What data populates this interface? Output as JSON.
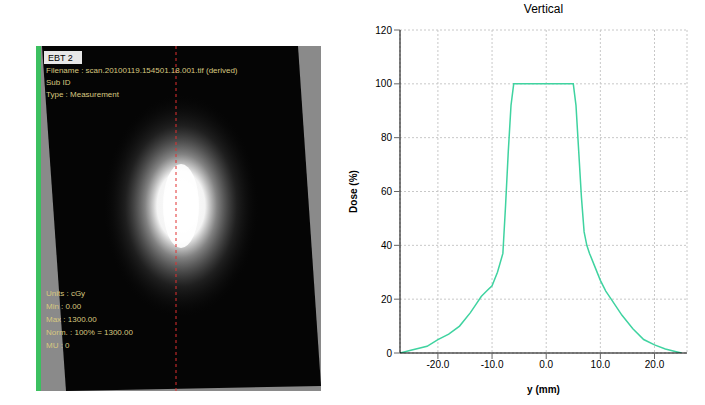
{
  "chart_data": {
    "type": "line",
    "title": "Vertical",
    "x_label": "y (mm)",
    "y_label": "Dose (%)",
    "x": [
      -27,
      -25,
      -22,
      -20,
      -18,
      -16,
      -14,
      -13,
      -12,
      -11,
      -10,
      -9,
      -8,
      -7.5,
      -7,
      -6.5,
      -6,
      0,
      5,
      5.5,
      6,
      6.5,
      7,
      7.5,
      8,
      9,
      10,
      11,
      12,
      14,
      16,
      18,
      20,
      22,
      24,
      25
    ],
    "values": [
      0,
      1,
      2.5,
      5,
      7,
      10,
      15,
      18,
      21,
      23,
      25,
      30,
      37,
      55,
      75,
      92,
      100,
      100,
      100,
      92,
      75,
      58,
      45,
      40,
      37,
      32,
      27,
      23,
      20,
      14,
      9,
      5,
      3,
      1.5,
      0.5,
      0
    ],
    "color": "#3fd3a0",
    "xlim": [
      -27,
      26
    ],
    "xticks": [
      {
        "value": -20,
        "label": "-20.0"
      },
      {
        "value": -10,
        "label": "-10.0"
      },
      {
        "value": 0,
        "label": "0.0"
      },
      {
        "value": 10,
        "label": "10.0"
      },
      {
        "value": 20,
        "label": "20.0"
      }
    ],
    "ylim": [
      0,
      120
    ],
    "yticks": [
      0,
      20,
      40,
      60,
      80,
      100,
      120
    ],
    "grid": true
  },
  "image_panel": {
    "header_lines": [
      "EBT 2",
      "Filename : scan.20100119.154501.18.001.tif (derived)",
      "Sub ID",
      "Type : Measurement"
    ],
    "footer_lines": [
      "Units : cGy",
      "Min : 0.00",
      "Max : 1300.00",
      "Norm. : 100% = 1300.00",
      "MU : 0"
    ]
  }
}
